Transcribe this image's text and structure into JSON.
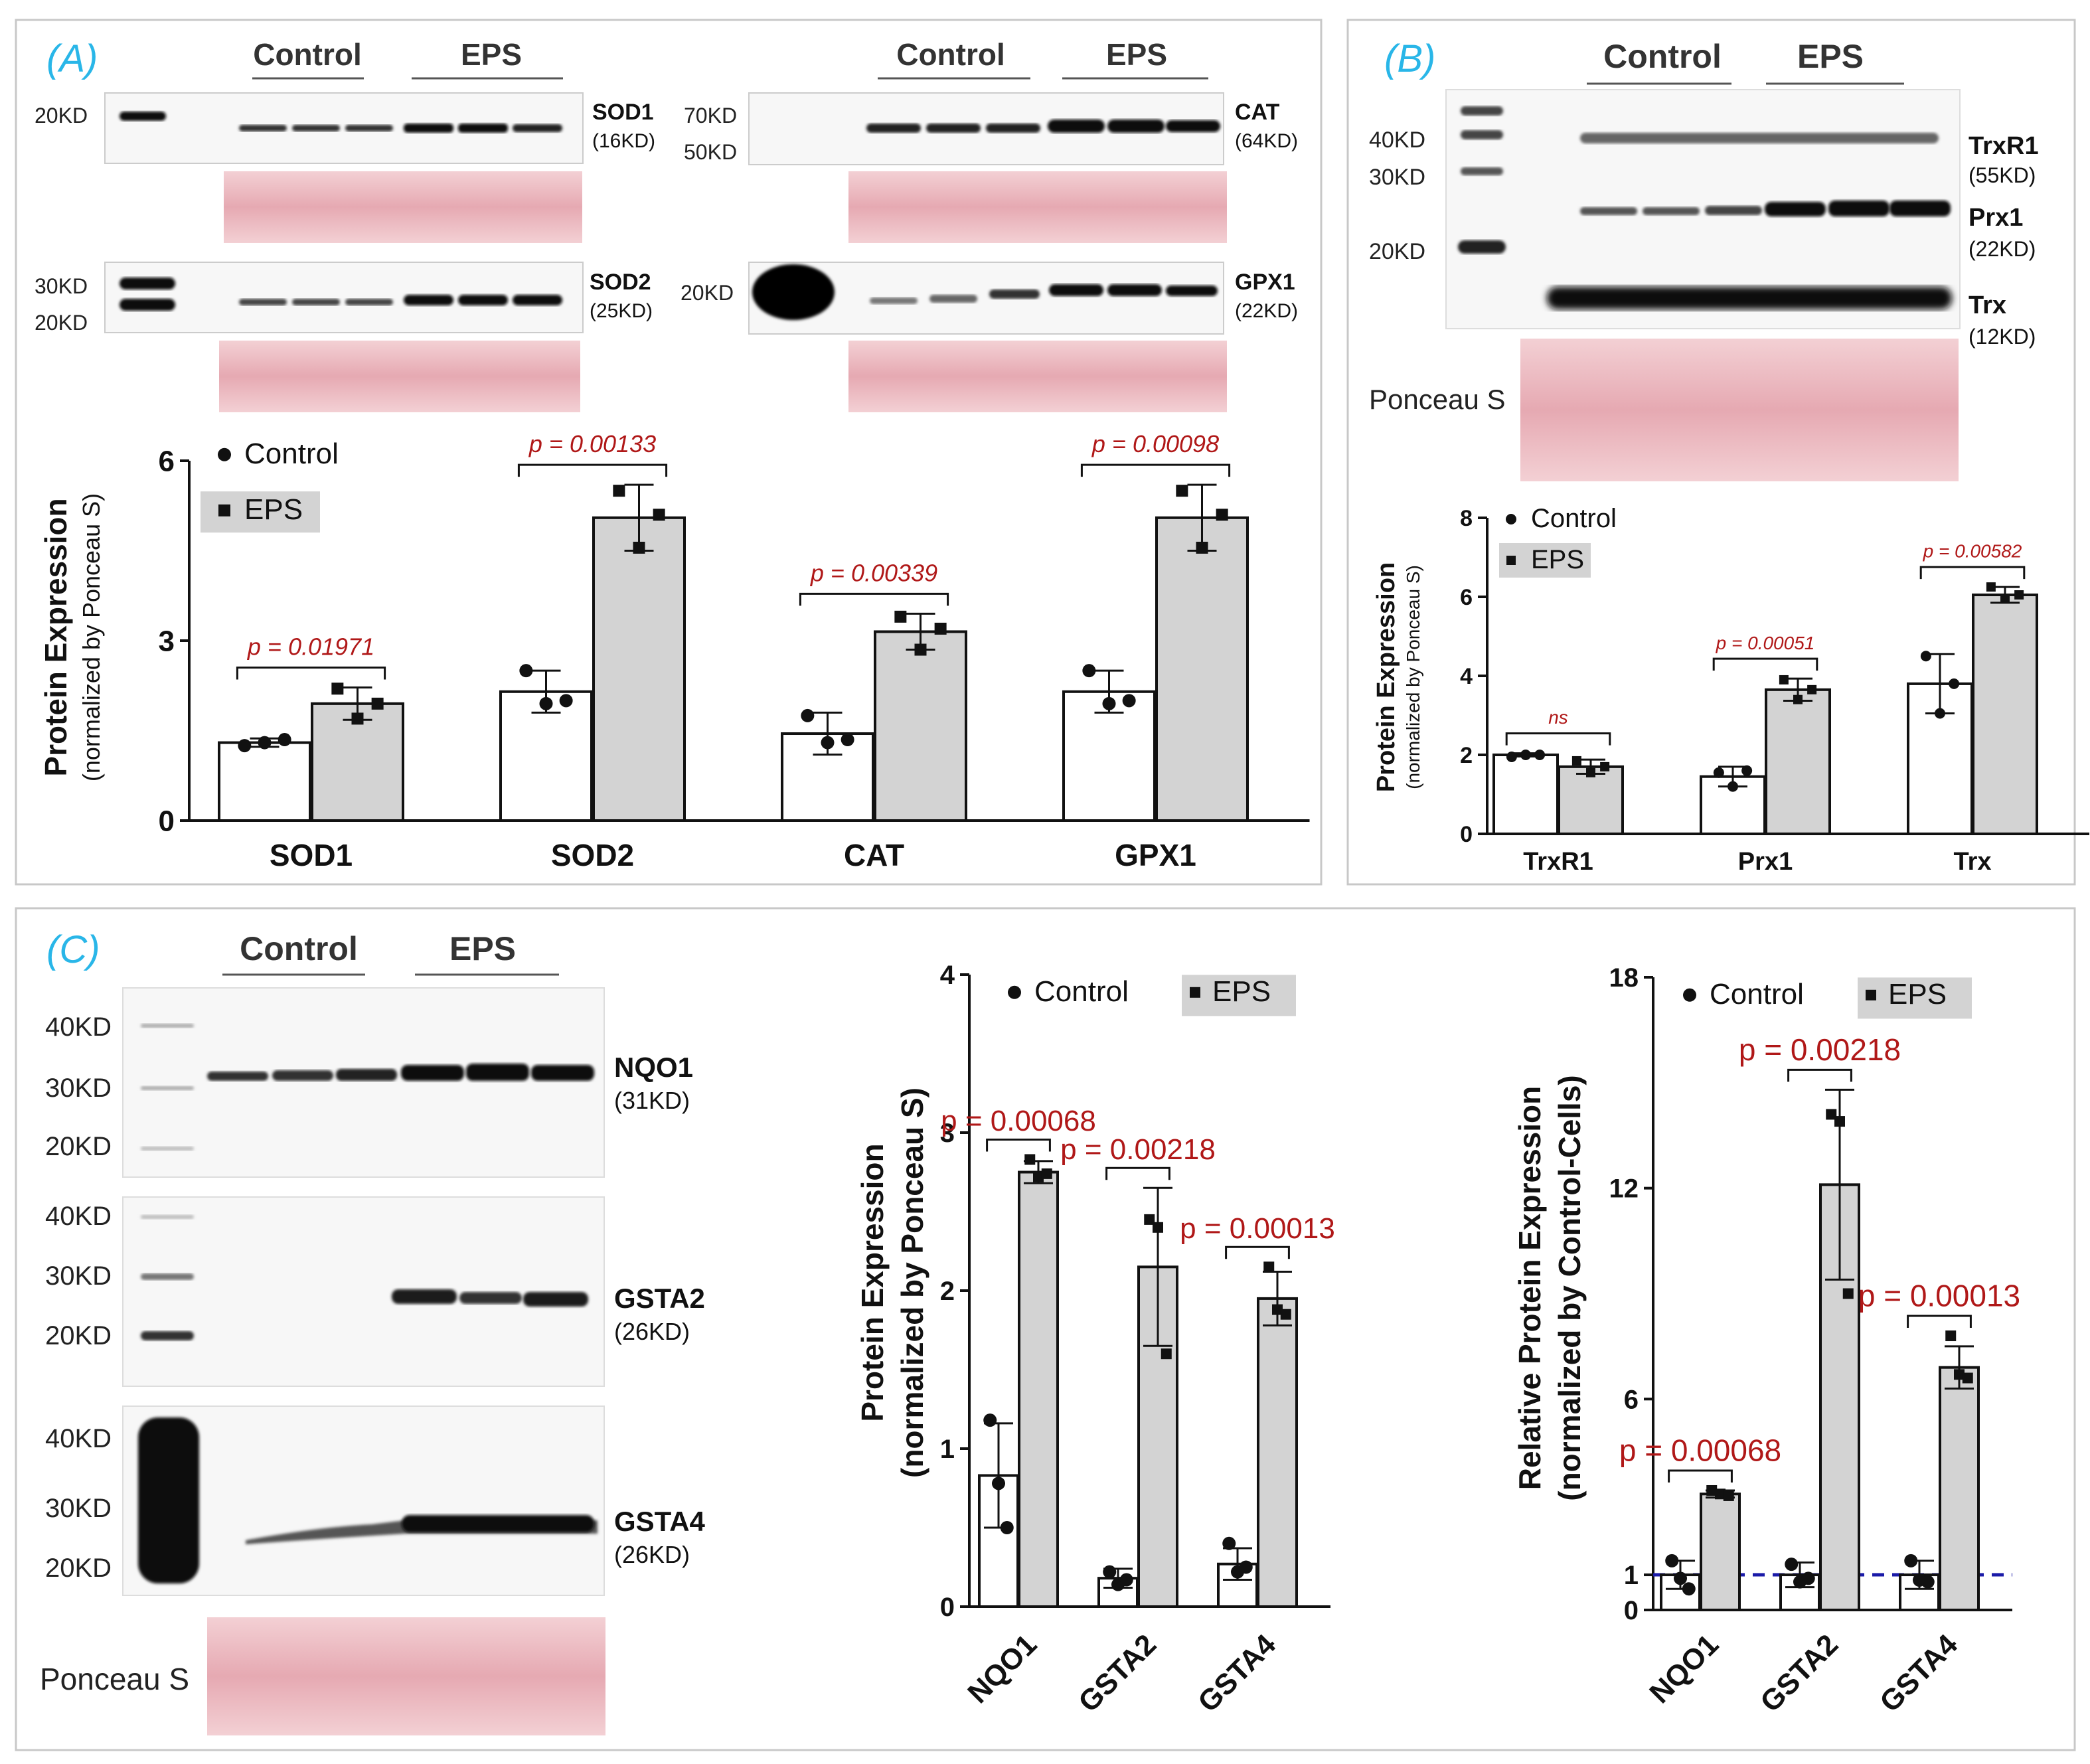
{
  "colors": {
    "panel_letter": "#29b6e8",
    "pvalue": "#b01818",
    "control_bar": "#ffffff",
    "eps_bar": "#d3d3d3",
    "ponceau": "#eab7be",
    "dashed_line": "#1a1aa8",
    "panel_border": "#c8c8c8"
  },
  "panels": {
    "a": {
      "letter": "(A)",
      "blots": {
        "group_control": "Control",
        "group_eps": "EPS",
        "sod1": {
          "marker": "20KD",
          "name": "SOD1",
          "size": "(16KD)"
        },
        "sod2": {
          "marker_top": "30KD",
          "marker_bottom": "20KD",
          "name": "SOD2",
          "size": "(25KD)"
        },
        "cat": {
          "marker_top": "70KD",
          "marker_bottom": "50KD",
          "name": "CAT",
          "size": "(64KD)"
        },
        "gpx1": {
          "marker": "20KD",
          "name": "GPX1",
          "size": "(22KD)"
        }
      }
    },
    "b": {
      "letter": "(B)",
      "blots": {
        "group_control": "Control",
        "group_eps": "EPS",
        "markers": [
          "40KD",
          "30KD",
          "20KD"
        ],
        "bands": [
          {
            "name": "TrxR1",
            "size": "(55KD)"
          },
          {
            "name": "Prx1",
            "size": "(22KD)"
          },
          {
            "name": "Trx",
            "size": "(12KD)"
          }
        ],
        "ponceau_label": "Ponceau S"
      }
    },
    "c": {
      "letter": "(C)",
      "blots": {
        "group_control": "Control",
        "group_eps": "EPS",
        "nqo1": {
          "markers": [
            "40KD",
            "30KD",
            "20KD"
          ],
          "name": "NQO1",
          "size": "(31KD)"
        },
        "gsta2": {
          "markers": [
            "40KD",
            "30KD",
            "20KD"
          ],
          "name": "GSTA2",
          "size": "(26KD)"
        },
        "gsta4": {
          "markers": [
            "40KD",
            "30KD",
            "20KD"
          ],
          "name": "GSTA4",
          "size": "(26KD)"
        },
        "ponceau_label": "Ponceau S"
      }
    }
  },
  "chart_data": [
    {
      "id": "A",
      "type": "bar",
      "ylabel": "Protein Expression",
      "ylabel2": "(normalized by Ponceau S)",
      "ylim": [
        0,
        6
      ],
      "yticks": [
        0,
        3,
        6
      ],
      "categories": [
        "SOD1",
        "SOD2",
        "CAT",
        "GPX1"
      ],
      "legend": {
        "placement": "top-left",
        "control": "Control",
        "eps": "EPS"
      },
      "series": [
        {
          "name": "Control",
          "values": [
            1.3,
            2.15,
            1.45,
            2.15
          ],
          "errors": [
            0.07,
            0.35,
            0.35,
            0.35
          ],
          "points": [
            [
              1.25,
              1.3,
              1.35
            ],
            [
              2.5,
              1.95,
              2.0
            ],
            [
              1.75,
              1.3,
              1.35
            ],
            [
              2.5,
              1.95,
              2.0
            ]
          ]
        },
        {
          "name": "EPS",
          "values": [
            1.95,
            5.05,
            3.15,
            5.05
          ],
          "errors": [
            0.27,
            0.55,
            0.3,
            0.55
          ],
          "points": [
            [
              2.2,
              1.7,
              1.95
            ],
            [
              5.5,
              4.55,
              5.1
            ],
            [
              3.4,
              2.85,
              3.2
            ],
            [
              5.5,
              4.55,
              5.1
            ]
          ]
        }
      ],
      "pvalues": [
        "p = 0.01971",
        "p = 0.00133",
        "p = 0.00339",
        "p = 0.00098"
      ]
    },
    {
      "id": "B",
      "type": "bar",
      "ylabel": "Protein Expression",
      "ylabel2": "(normalized by Ponceau S)",
      "ylim": [
        0,
        8
      ],
      "yticks": [
        0,
        2,
        4,
        6,
        8
      ],
      "categories": [
        "TrxR1",
        "Prx1",
        "Trx"
      ],
      "legend": {
        "placement": "top-left",
        "control": "Control",
        "eps": "EPS"
      },
      "series": [
        {
          "name": "Control",
          "values": [
            2.0,
            1.45,
            3.8
          ],
          "errors": [
            0.04,
            0.25,
            0.75
          ],
          "points": [
            [
              1.95,
              2.0,
              2.0
            ],
            [
              1.55,
              1.2,
              1.6
            ],
            [
              4.5,
              3.05,
              3.8
            ]
          ]
        },
        {
          "name": "EPS",
          "values": [
            1.7,
            3.65,
            6.05
          ],
          "errors": [
            0.18,
            0.28,
            0.2
          ],
          "points": [
            [
              1.85,
              1.55,
              1.7
            ],
            [
              3.9,
              3.4,
              3.65
            ],
            [
              6.25,
              5.95,
              6.05
            ]
          ]
        }
      ],
      "pvalues": [
        "ns",
        "p = 0.00051",
        "p = 0.00582"
      ]
    },
    {
      "id": "C1",
      "type": "bar",
      "ylabel": "Protein Expression",
      "ylabel2": "(normalized by Ponceau S)",
      "ylim": [
        0,
        4
      ],
      "yticks": [
        0,
        1,
        2,
        3,
        4
      ],
      "categories": [
        "NQO1",
        "GSTA2",
        "GSTA4"
      ],
      "legend": {
        "placement": "top",
        "control": "Control",
        "eps": "EPS"
      },
      "series": [
        {
          "name": "Control",
          "values": [
            0.83,
            0.18,
            0.27
          ],
          "errors": [
            0.33,
            0.06,
            0.1
          ],
          "points": [
            [
              1.18,
              0.78,
              0.5
            ],
            [
              0.22,
              0.14,
              0.17
            ],
            [
              0.4,
              0.22,
              0.25
            ]
          ]
        },
        {
          "name": "EPS",
          "values": [
            2.75,
            2.15,
            1.95
          ],
          "errors": [
            0.07,
            0.5,
            0.17
          ],
          "points": [
            [
              2.83,
              2.72,
              2.74
            ],
            [
              2.45,
              2.4,
              1.6
            ],
            [
              2.15,
              1.88,
              1.85
            ]
          ]
        }
      ],
      "pvalues": [
        "p = 0.00068",
        "p = 0.00218",
        "p = 0.00013"
      ]
    },
    {
      "id": "C2",
      "type": "bar",
      "ylabel": "Relative Protein Expression",
      "ylabel2": "(normalized by Control-Cells)",
      "ylim": [
        0,
        18
      ],
      "yticks": [
        0,
        1,
        6,
        12,
        18
      ],
      "categories": [
        "NQO1",
        "GSTA2",
        "GSTA4"
      ],
      "legend": {
        "placement": "top",
        "control": "Control",
        "eps": "EPS"
      },
      "reference_line": 1,
      "series": [
        {
          "name": "Control",
          "values": [
            1.0,
            1.0,
            1.0
          ],
          "errors": [
            0.4,
            0.35,
            0.4
          ],
          "points": [
            [
              1.4,
              0.9,
              0.6
            ],
            [
              1.3,
              0.8,
              0.9
            ],
            [
              1.4,
              0.85,
              0.8
            ]
          ]
        },
        {
          "name": "EPS",
          "values": [
            3.3,
            12.1,
            6.9
          ],
          "errors": [
            0.1,
            2.7,
            0.6
          ],
          "points": [
            [
              3.4,
              3.3,
              3.25
            ],
            [
              14.1,
              13.9,
              9.0
            ],
            [
              7.8,
              6.7,
              6.6
            ]
          ]
        }
      ],
      "pvalues": [
        "p = 0.00068",
        "p = 0.00218",
        "p = 0.00013"
      ]
    }
  ]
}
